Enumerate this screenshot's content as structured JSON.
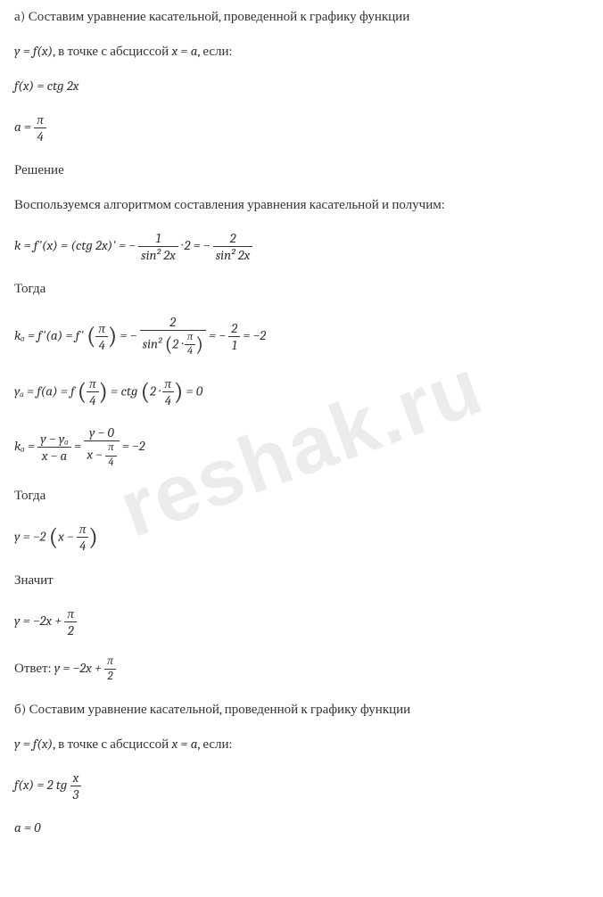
{
  "sectionA": {
    "line1": "а) Составим уравнение касательной, проведенной к графику функции",
    "line2_prefix": "y = f(x)",
    "line2_middle": ", в точке с абсциссой ",
    "line2_x": "x = a",
    "line2_suffix": ", если:",
    "func_def": "f(x) = ctg 2x",
    "a_label": "a = ",
    "a_frac_num": "π",
    "a_frac_den": "4",
    "solution_label": "Решение",
    "algo_text": "Воспользуемся алгоритмом составления уравнения касательной и получим:",
    "k_expr_prefix": "k = f'(x) = (ctg 2x)' = − ",
    "k_frac1_num": "1",
    "k_frac1_den": "sin² 2x",
    "k_dot2": " · 2 = − ",
    "k_frac2_num": "2",
    "k_frac2_den": "sin² 2x",
    "then_label": "Тогда",
    "ka_prefix": "kₐ =  f'(a) = f' ",
    "ka_paren_num": "π",
    "ka_paren_den": "4",
    "ka_eq": " = − ",
    "ka_frac_num": "2",
    "ka_frac_den_prefix": "sin² ",
    "ka_frac_den_2": "2 · ",
    "ka_frac_den_pi": "π",
    "ka_frac_den_4": "4",
    "ka_result": " = − ",
    "ka_res_num": "2",
    "ka_res_den": "1",
    "ka_final": " = −2",
    "ya_prefix": "yₐ = f(a) = f ",
    "ya_paren_num": "π",
    "ya_paren_den": "4",
    "ya_mid": " = ctg ",
    "ya_ctg_2": "2 · ",
    "ya_ctg_num": "π",
    "ya_ctg_den": "4",
    "ya_result": " = 0",
    "ka2_prefix": "kₐ = ",
    "ka2_f1_num": "y − yₐ",
    "ka2_f1_den": "x − a",
    "ka2_eq": " = ",
    "ka2_f2_num": "y − 0",
    "ka2_f2_den_prefix": "x − ",
    "ka2_f2_den_num": "π",
    "ka2_f2_den_den": "4",
    "ka2_result": " = −2",
    "then2_label": "Тогда",
    "y_expr1_prefix": "y = −2 ",
    "y_expr1_x": "x − ",
    "y_expr1_num": "π",
    "y_expr1_den": "4",
    "means_label": "Значит",
    "y_expr2_prefix": "y = −2x + ",
    "y_expr2_num": "π",
    "y_expr2_den": "2",
    "answer_prefix": "Ответ: ",
    "answer_y": "y = −2x + ",
    "answer_num": "π",
    "answer_den": "2"
  },
  "sectionB": {
    "line1": "б) Составим уравнение касательной, проведенной к графику функции",
    "line2_prefix": "y = f(x)",
    "line2_middle": ", в точке с абсциссой ",
    "line2_x": "x = a",
    "line2_suffix": ", если:",
    "func_prefix": "f(x) = 2 tg ",
    "func_num": "x",
    "func_den": "3",
    "a_val": "a = 0"
  },
  "watermark": "reshak.ru",
  "colors": {
    "text": "#333333",
    "background": "#ffffff",
    "watermark": "rgba(200,200,200,0.35)"
  }
}
